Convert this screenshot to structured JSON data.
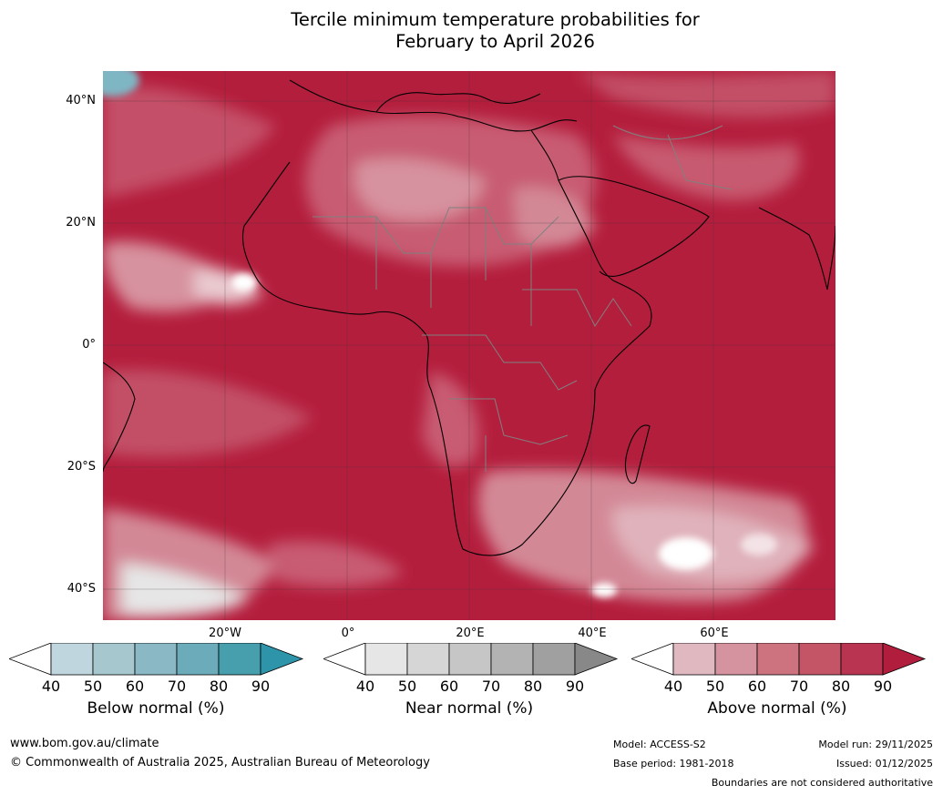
{
  "title": {
    "line1": "Tercile minimum temperature probabilities for",
    "line2": "February to April 2026"
  },
  "map": {
    "lat_labels": [
      "40°N",
      "20°N",
      "0°",
      "20°S",
      "40°S"
    ],
    "lon_labels": [
      "20°W",
      "0°",
      "20°E",
      "40°E",
      "60°E"
    ]
  },
  "colorbars": [
    {
      "title": "Below normal (%)",
      "ticks": [
        "40",
        "50",
        "60",
        "70",
        "80",
        "90"
      ],
      "colors": [
        "#ffffff",
        "#c0d6de",
        "#a7c7cf",
        "#8ab8c4",
        "#6cabb9",
        "#479ead",
        "#2e94a9"
      ]
    },
    {
      "title": "Near normal (%)",
      "ticks": [
        "40",
        "50",
        "60",
        "70",
        "80",
        "90"
      ],
      "colors": [
        "#ffffff",
        "#e6e6e6",
        "#d6d6d6",
        "#c6c6c6",
        "#b3b3b3",
        "#a0a0a0",
        "#888888"
      ]
    },
    {
      "title": "Above normal (%)",
      "ticks": [
        "40",
        "50",
        "60",
        "70",
        "80",
        "90"
      ],
      "colors": [
        "#ffffff",
        "#e0b8c0",
        "#d5939f",
        "#cc737f",
        "#c35566",
        "#b83450",
        "#b01d3d"
      ]
    }
  ],
  "footer": {
    "url": "www.bom.gov.au/climate",
    "copyright": "© Commonwealth of Australia 2025, Australian Bureau of Meteorology",
    "model": "Model: ACCESS-S2",
    "base_period": "Base period: 1981-2018",
    "model_run": "Model run: 29/11/2025",
    "issued": "Issued: 01/12/2025",
    "disclaimer": "Boundaries are not considered authoritative"
  }
}
